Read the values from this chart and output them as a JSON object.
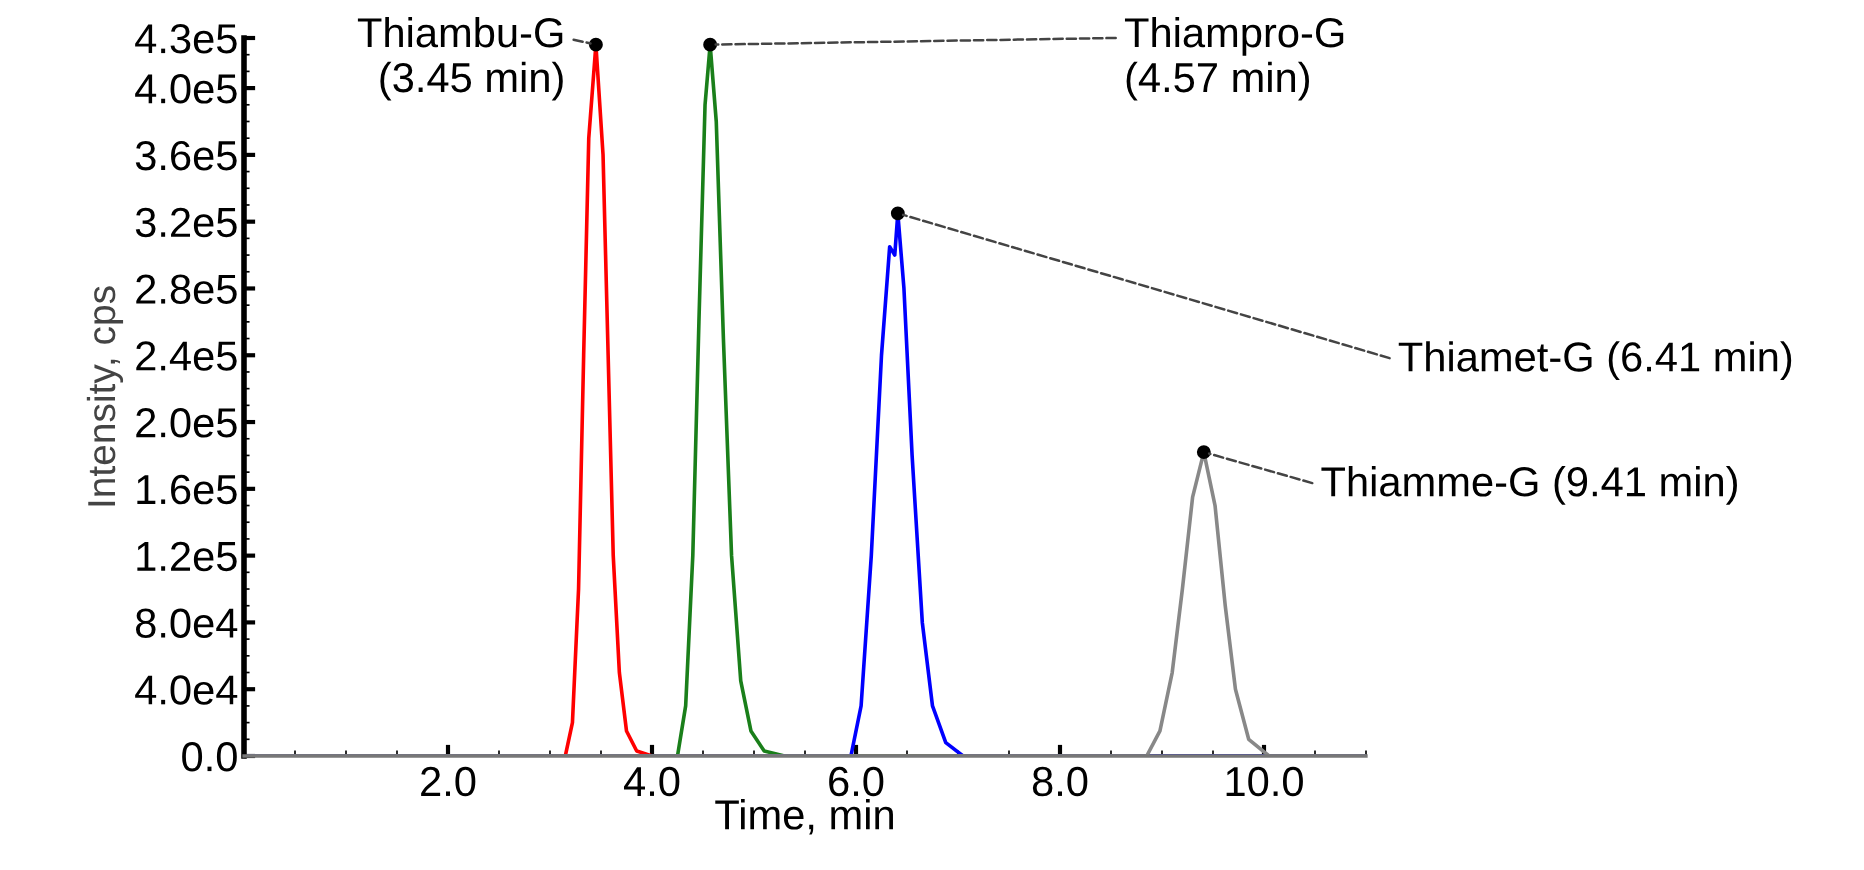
{
  "chart_data": {
    "type": "line",
    "xlabel": "Time, min",
    "ylabel": "Intensity, cps",
    "xlim": [
      0,
      11.0
    ],
    "xticks": [
      {
        "value": 2,
        "label": "2.0"
      },
      {
        "value": 4,
        "label": "4.0"
      },
      {
        "value": 6,
        "label": "6.0"
      },
      {
        "value": 8,
        "label": "8.0"
      },
      {
        "value": 10,
        "label": "10.0"
      }
    ],
    "ylim": [
      0,
      430000
    ],
    "yticks": [
      {
        "value": 0,
        "label": "0.0"
      },
      {
        "value": 40000,
        "label": "4.0e4"
      },
      {
        "value": 80000,
        "label": "8.0e4"
      },
      {
        "value": 120000,
        "label": "1.2e5"
      },
      {
        "value": 160000,
        "label": "1.6e5"
      },
      {
        "value": 200000,
        "label": "2.0e5"
      },
      {
        "value": 240000,
        "label": "2.4e5"
      },
      {
        "value": 280000,
        "label": "2.8e5"
      },
      {
        "value": 320000,
        "label": "3.2e5"
      },
      {
        "value": 360000,
        "label": "3.6e5"
      },
      {
        "value": 400000,
        "label": "4.0e5"
      },
      {
        "value": 430000,
        "label": "4.3e5"
      }
    ],
    "grid": false,
    "marker": "none",
    "line_style": "solid",
    "series": [
      {
        "color": "#ff0000",
        "x": [
          0,
          3.15,
          3.22,
          3.28,
          3.33,
          3.38,
          3.45,
          3.52,
          3.57,
          3.62,
          3.68,
          3.75,
          3.85,
          4.0,
          11.0
        ],
        "values": [
          0,
          0,
          20000,
          100000,
          240000,
          370000,
          426000,
          360000,
          240000,
          120000,
          50000,
          15000,
          3000,
          0,
          0
        ]
      },
      {
        "color": "#1a7f1a",
        "x": [
          0,
          4.25,
          4.33,
          4.4,
          4.46,
          4.52,
          4.57,
          4.63,
          4.7,
          4.78,
          4.87,
          4.97,
          5.1,
          5.3,
          11.0
        ],
        "values": [
          0,
          0,
          30000,
          120000,
          260000,
          390000,
          426000,
          380000,
          250000,
          120000,
          45000,
          15000,
          3000,
          0,
          0
        ]
      },
      {
        "color": "#0000ff",
        "x": [
          0,
          5.95,
          6.05,
          6.15,
          6.25,
          6.33,
          6.38,
          6.41,
          6.47,
          6.55,
          6.65,
          6.75,
          6.88,
          7.05,
          11.0
        ],
        "values": [
          0,
          0,
          30000,
          120000,
          240000,
          305000,
          300000,
          325000,
          280000,
          180000,
          80000,
          30000,
          8000,
          0,
          0
        ]
      },
      {
        "color": "#888888",
        "x": [
          0,
          8.85,
          8.98,
          9.1,
          9.2,
          9.3,
          9.41,
          9.52,
          9.62,
          9.72,
          9.85,
          10.05,
          11.0
        ],
        "values": [
          0,
          0,
          15000,
          50000,
          100000,
          155000,
          182000,
          150000,
          90000,
          40000,
          10000,
          0,
          0
        ]
      }
    ],
    "annotations": [
      {
        "text": "Thiambu-G\n(3.45 min)",
        "x": 3.45,
        "y": 426000
      },
      {
        "text": "Thiampro-G\n(4.57 min)",
        "x": 4.57,
        "y": 426000
      },
      {
        "text": "Thiamet-G (6.41 min)",
        "x": 6.41,
        "y": 325000
      },
      {
        "text": "Thiamme-G (9.41 min)",
        "x": 9.41,
        "y": 182000
      }
    ]
  }
}
